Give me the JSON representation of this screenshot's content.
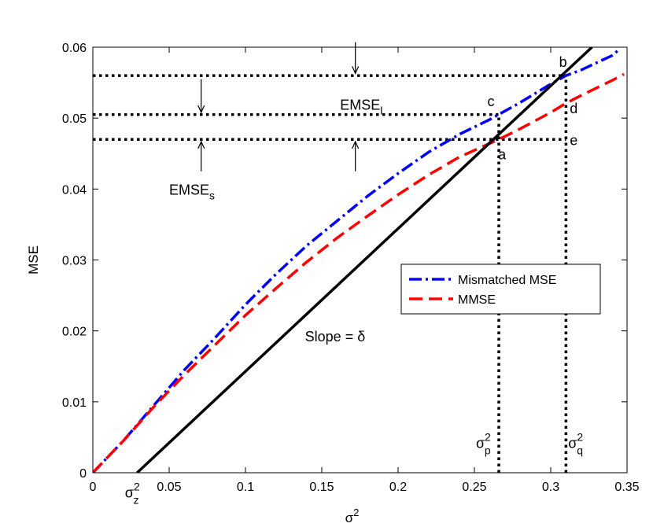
{
  "chart_data": {
    "type": "line",
    "title": "",
    "xlabel": "σ",
    "xlabel_sup": "2",
    "ylabel": "MSE",
    "xlim": [
      0,
      0.35
    ],
    "ylim": [
      0,
      0.06
    ],
    "x_ticks": [
      0,
      0.05,
      0.1,
      0.15,
      0.2,
      0.25,
      0.3,
      0.35
    ],
    "x_tick_labels": [
      "0",
      "0.05",
      "0.1",
      "0.15",
      "0.2",
      "0.25",
      "0.3",
      "0.35"
    ],
    "y_ticks": [
      0,
      0.01,
      0.02,
      0.03,
      0.04,
      0.05,
      0.06
    ],
    "y_tick_labels": [
      "0",
      "0.01",
      "0.02",
      "0.03",
      "0.04",
      "0.05",
      "0.06"
    ],
    "grid": false,
    "legend_position": "center-right",
    "series": [
      {
        "name": "Mismatched MSE",
        "color": "#0000ff",
        "style": "dash-dot",
        "x": [
          0,
          0.02,
          0.04,
          0.06,
          0.08,
          0.1,
          0.12,
          0.14,
          0.16,
          0.18,
          0.2,
          0.22,
          0.24,
          0.26,
          0.28,
          0.3,
          0.31,
          0.32,
          0.34,
          0.345
        ],
        "y": [
          0,
          0.0045,
          0.0095,
          0.0145,
          0.019,
          0.0237,
          0.028,
          0.032,
          0.0355,
          0.039,
          0.0422,
          0.0452,
          0.0477,
          0.0498,
          0.0522,
          0.0548,
          0.056,
          0.0568,
          0.0588,
          0.0597
        ]
      },
      {
        "name": "MMSE",
        "color": "#ff0000",
        "style": "dashed",
        "x": [
          0,
          0.02,
          0.04,
          0.06,
          0.08,
          0.1,
          0.12,
          0.14,
          0.16,
          0.18,
          0.2,
          0.22,
          0.24,
          0.266,
          0.28,
          0.3,
          0.31,
          0.32,
          0.34,
          0.348
        ],
        "y": [
          0,
          0.0045,
          0.0093,
          0.0138,
          0.018,
          0.0222,
          0.026,
          0.0297,
          0.0331,
          0.0362,
          0.0392,
          0.042,
          0.0445,
          0.047,
          0.0485,
          0.0508,
          0.0521,
          0.0532,
          0.0553,
          0.0562
        ]
      },
      {
        "name": "",
        "color": "#000000",
        "style": "solid",
        "x": [
          0.029,
          0.327
        ],
        "y": [
          0,
          0.06
        ]
      }
    ],
    "dotted_lines": [
      {
        "x1": 0,
        "y1": 0.056,
        "x2": 0.31,
        "y2": 0.056
      },
      {
        "x1": 0,
        "y1": 0.0505,
        "x2": 0.266,
        "y2": 0.0505
      },
      {
        "x1": 0,
        "y1": 0.047,
        "x2": 0.31,
        "y2": 0.047
      },
      {
        "x1": 0.266,
        "y1": 0,
        "x2": 0.266,
        "y2": 0.0505
      },
      {
        "x1": 0.31,
        "y1": 0,
        "x2": 0.31,
        "y2": 0.056
      }
    ],
    "arrows": [
      {
        "x": 0.172,
        "y_from": 0.0607,
        "y_to": 0.0563
      },
      {
        "x": 0.071,
        "y_from": 0.0555,
        "y_to": 0.0508
      },
      {
        "x": 0.071,
        "y_from": 0.0425,
        "y_to": 0.0467
      },
      {
        "x": 0.172,
        "y_from": 0.0425,
        "y_to": 0.0467
      }
    ],
    "point_labels": [
      {
        "text": "b",
        "x": 0.3055,
        "y": 0.0572
      },
      {
        "text": "c",
        "x": 0.2585,
        "y": 0.0517
      },
      {
        "text": "d",
        "x": 0.3125,
        "y": 0.0507
      },
      {
        "text": "e",
        "x": 0.3125,
        "y": 0.0462
      },
      {
        "text": "a",
        "x": 0.2655,
        "y": 0.0442
      }
    ],
    "annotations": [
      {
        "text": "EMSE",
        "sub": "l",
        "x": 0.162,
        "y": 0.0512
      },
      {
        "text": "EMSE",
        "sub": "s",
        "x": 0.05,
        "y": 0.0392
      },
      {
        "text": "Slope = δ",
        "x": 0.139,
        "y": 0.0185
      },
      {
        "text": "σ",
        "sup": "2",
        "sub": "p",
        "x": 0.251,
        "y": 0.0035
      },
      {
        "text": "σ",
        "sup": "2",
        "sub": "q",
        "x": 0.3115,
        "y": 0.0035
      },
      {
        "text": "σ",
        "sup": "2",
        "sub": "z",
        "x": 0.021,
        "y": -0.0035
      }
    ]
  }
}
